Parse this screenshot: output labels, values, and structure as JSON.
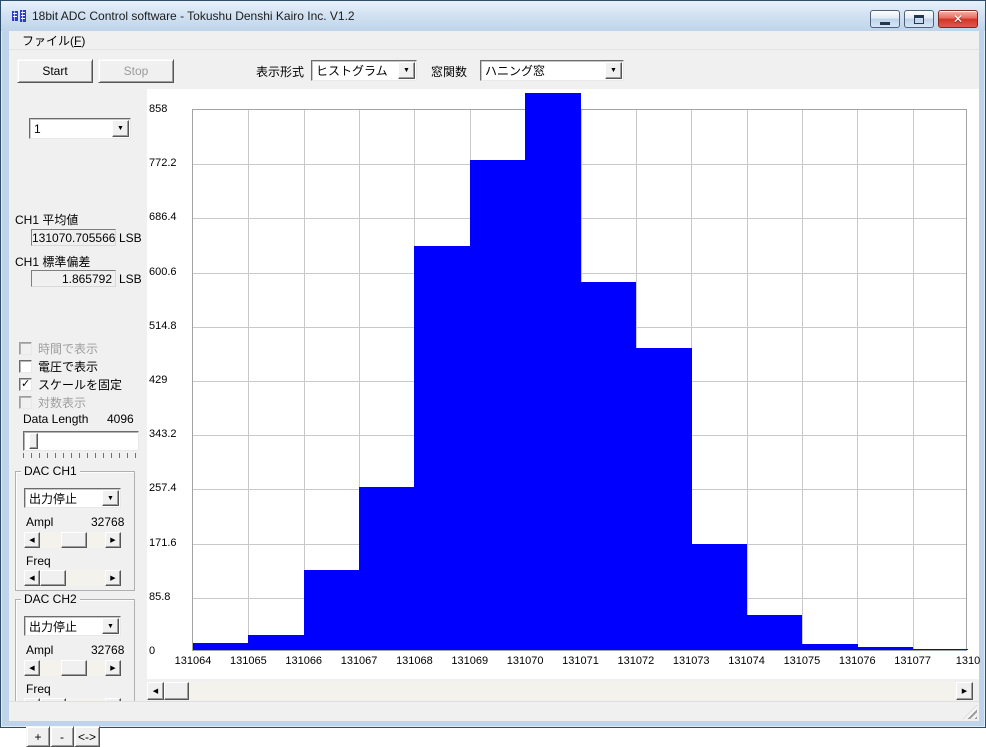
{
  "window": {
    "title": "18bit ADC Control software - Tokushu Denshi Kairo Inc. V1.2"
  },
  "menu": {
    "file_pre": "ファイル(",
    "file_key": "F",
    "file_post": ")"
  },
  "toolbar": {
    "start": "Start",
    "stop": "Stop",
    "display_format_label": "表示形式",
    "display_format_value": "ヒストグラム",
    "window_function_label": "窓関数",
    "window_function_value": "ハニング窓"
  },
  "sidebar": {
    "channel_select": "1",
    "mean_label": "CH1 平均値",
    "mean_value": "131070.705566",
    "mean_unit": "LSB",
    "std_label": "CH1 標準偏差",
    "std_value": "1.865792",
    "std_unit": "LSB",
    "checkboxes": [
      {
        "label": "時間で表示",
        "checked": false,
        "enabled": false
      },
      {
        "label": "電圧で表示",
        "checked": false,
        "enabled": true
      },
      {
        "label": "スケールを固定",
        "checked": true,
        "enabled": true
      },
      {
        "label": "対数表示",
        "checked": false,
        "enabled": false
      }
    ],
    "data_length_label": "Data Length",
    "data_length_value": "4096",
    "dac1": {
      "title": "DAC CH1",
      "output": "出力停止",
      "ampl_label": "Ampl",
      "ampl_value": "32768",
      "freq_label": "Freq"
    },
    "dac2": {
      "title": "DAC CH2",
      "output": "出力停止",
      "ampl_label": "Ampl",
      "ampl_value": "32768",
      "freq_label": "Freq"
    },
    "zoom_buttons": [
      "+",
      "-",
      "<->"
    ]
  },
  "chart_data": {
    "type": "bar",
    "title": "",
    "xlabel": "",
    "ylabel": "",
    "categories": [
      "131064",
      "131065",
      "131066",
      "131067",
      "131068",
      "131069",
      "131070",
      "131071",
      "131072",
      "131073",
      "131074",
      "131075",
      "131076",
      "131077"
    ],
    "values": [
      11,
      24,
      126,
      258,
      640,
      775,
      882,
      582,
      478,
      168,
      56,
      10,
      4,
      2
    ],
    "partial_last_label": "1310",
    "ylim": [
      0,
      858
    ],
    "yticks": [
      "858",
      "772.2",
      "686.4",
      "600.6",
      "514.8",
      "429",
      "343.2",
      "257.4",
      "171.6",
      "85.8",
      "0"
    ],
    "bar_color": "#0000ff",
    "grid": true,
    "legend": "none"
  },
  "colors": {
    "bar": "#0000ff",
    "titlebar": "#cfe0f2",
    "close_button": "#d03426",
    "panel": "#f0f0f0"
  }
}
